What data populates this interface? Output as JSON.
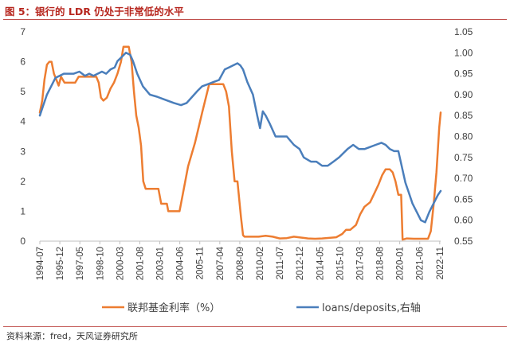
{
  "figure": {
    "title": "图 5：银行的 LDR 仍处于非常低的水平",
    "source": "资料来源：fred，天风证券研究所"
  },
  "chart_data": {
    "type": "line",
    "title": "",
    "xlabel": "",
    "ylabel": "",
    "y_left": {
      "ticks": [
        "0",
        "1",
        "2",
        "3",
        "4",
        "5",
        "6",
        "7"
      ],
      "range": [
        0,
        7
      ]
    },
    "y_right": {
      "ticks": [
        "0.55",
        "0.60",
        "0.65",
        "0.70",
        "0.75",
        "0.80",
        "0.85",
        "0.90",
        "0.95",
        "1.00",
        "1.05"
      ],
      "range": [
        0.55,
        1.05
      ]
    },
    "x_ticks": [
      "1994-07",
      "1995-12",
      "1997-05",
      "1998-10",
      "2000-03",
      "2001-08",
      "2003-01",
      "2004-06",
      "2005-11",
      "2007-04",
      "2008-09",
      "2010-02",
      "2011-07",
      "2012-12",
      "2014-05",
      "2015-10",
      "2017-03",
      "2018-08",
      "2020-01",
      "2021-06",
      "2022-11"
    ],
    "x_range": [
      1994.5,
      2022.9
    ],
    "grid": false,
    "legend_position": "bottom",
    "colors": {
      "fed_funds": "#ed7d31",
      "ldr": "#4a7ebb"
    },
    "series": [
      {
        "name": "联邦基金利率（%）",
        "axis": "left",
        "x": [
          1994.5,
          1994.67,
          1994.83,
          1995.0,
          1995.17,
          1995.33,
          1995.5,
          1995.67,
          1995.83,
          1996.0,
          1996.25,
          1996.5,
          1996.75,
          1997.0,
          1997.25,
          1997.5,
          1997.75,
          1998.0,
          1998.25,
          1998.5,
          1998.67,
          1998.83,
          1999.0,
          1999.25,
          1999.5,
          1999.75,
          2000.0,
          2000.25,
          2000.42,
          2000.6,
          2000.8,
          2001.0,
          2001.17,
          2001.33,
          2001.5,
          2001.67,
          2001.83,
          2002.0,
          2002.5,
          2002.9,
          2003.1,
          2003.5,
          2003.6,
          2004.0,
          2004.4,
          2004.6,
          2005.0,
          2005.5,
          2006.0,
          2006.5,
          2007.0,
          2007.5,
          2007.7,
          2007.9,
          2008.1,
          2008.3,
          2008.5,
          2008.75,
          2008.9,
          2009.0,
          2009.5,
          2010.0,
          2010.5,
          2011.0,
          2011.5,
          2012.0,
          2012.5,
          2013.0,
          2013.5,
          2014.0,
          2014.5,
          2015.0,
          2015.5,
          2015.92,
          2016.2,
          2016.5,
          2016.9,
          2017.2,
          2017.5,
          2017.9,
          2018.2,
          2018.5,
          2018.75,
          2019.0,
          2019.3,
          2019.5,
          2019.7,
          2019.9,
          2020.1,
          2020.2,
          2020.5,
          2021.0,
          2021.5,
          2022.0,
          2022.2,
          2022.4,
          2022.6,
          2022.8,
          2022.9
        ],
        "values": [
          4.3,
          4.7,
          5.4,
          5.9,
          6.0,
          6.0,
          5.6,
          5.4,
          5.2,
          5.5,
          5.3,
          5.3,
          5.3,
          5.3,
          5.5,
          5.5,
          5.5,
          5.5,
          5.5,
          5.5,
          5.3,
          4.8,
          4.7,
          4.8,
          5.1,
          5.3,
          5.6,
          6.0,
          6.5,
          6.5,
          6.5,
          6.0,
          5.0,
          4.2,
          3.8,
          3.2,
          2.0,
          1.75,
          1.75,
          1.75,
          1.25,
          1.25,
          1.0,
          1.0,
          1.0,
          1.5,
          2.5,
          3.3,
          4.3,
          5.25,
          5.25,
          5.25,
          5.0,
          4.5,
          3.0,
          2.0,
          2.0,
          0.8,
          0.2,
          0.15,
          0.15,
          0.15,
          0.18,
          0.15,
          0.09,
          0.1,
          0.15,
          0.12,
          0.09,
          0.08,
          0.09,
          0.11,
          0.13,
          0.24,
          0.38,
          0.38,
          0.54,
          0.9,
          1.15,
          1.3,
          1.6,
          1.9,
          2.2,
          2.4,
          2.4,
          2.3,
          2.0,
          1.55,
          1.55,
          0.05,
          0.09,
          0.08,
          0.08,
          0.08,
          0.33,
          1.2,
          2.3,
          3.8,
          4.3
        ]
      },
      {
        "name": "loans/deposits,右轴",
        "axis": "right",
        "x": [
          1994.5,
          1994.7,
          1995.0,
          1995.3,
          1995.6,
          1995.9,
          1996.2,
          1996.6,
          1996.9,
          1997.3,
          1997.7,
          1998.0,
          1998.3,
          1998.6,
          1998.9,
          1999.2,
          1999.5,
          1999.8,
          2000.0,
          2000.3,
          2000.6,
          2000.9,
          2001.1,
          2001.4,
          2001.8,
          2002.3,
          2002.8,
          2003.2,
          2003.6,
          2004.0,
          2004.5,
          2004.9,
          2005.3,
          2005.7,
          2006.0,
          2006.4,
          2006.8,
          2007.2,
          2007.6,
          2007.9,
          2008.2,
          2008.5,
          2008.7,
          2008.9,
          2009.2,
          2009.6,
          2009.9,
          2010.1,
          2010.3,
          2010.5,
          2010.8,
          2011.2,
          2011.6,
          2012.0,
          2012.5,
          2012.9,
          2013.2,
          2013.7,
          2014.1,
          2014.5,
          2014.9,
          2015.3,
          2015.7,
          2016.0,
          2016.3,
          2016.7,
          2017.1,
          2017.5,
          2017.9,
          2018.3,
          2018.7,
          2019.0,
          2019.3,
          2019.6,
          2019.9,
          2020.2,
          2020.4,
          2020.6,
          2020.9,
          2021.2,
          2021.5,
          2021.8,
          2022.1,
          2022.4,
          2022.7,
          2022.9
        ],
        "values": [
          0.85,
          0.87,
          0.9,
          0.92,
          0.94,
          0.945,
          0.95,
          0.95,
          0.95,
          0.955,
          0.945,
          0.95,
          0.945,
          0.95,
          0.955,
          0.95,
          0.96,
          0.965,
          0.98,
          0.99,
          1.0,
          0.995,
          0.98,
          0.95,
          0.92,
          0.9,
          0.895,
          0.89,
          0.885,
          0.88,
          0.875,
          0.88,
          0.895,
          0.91,
          0.92,
          0.925,
          0.93,
          0.935,
          0.96,
          0.965,
          0.97,
          0.975,
          0.97,
          0.96,
          0.93,
          0.9,
          0.85,
          0.82,
          0.86,
          0.85,
          0.83,
          0.8,
          0.8,
          0.8,
          0.78,
          0.77,
          0.75,
          0.74,
          0.74,
          0.73,
          0.73,
          0.74,
          0.75,
          0.76,
          0.77,
          0.78,
          0.77,
          0.77,
          0.775,
          0.78,
          0.785,
          0.78,
          0.77,
          0.765,
          0.765,
          0.72,
          0.69,
          0.67,
          0.64,
          0.62,
          0.6,
          0.595,
          0.62,
          0.64,
          0.66,
          0.67
        ]
      }
    ]
  }
}
